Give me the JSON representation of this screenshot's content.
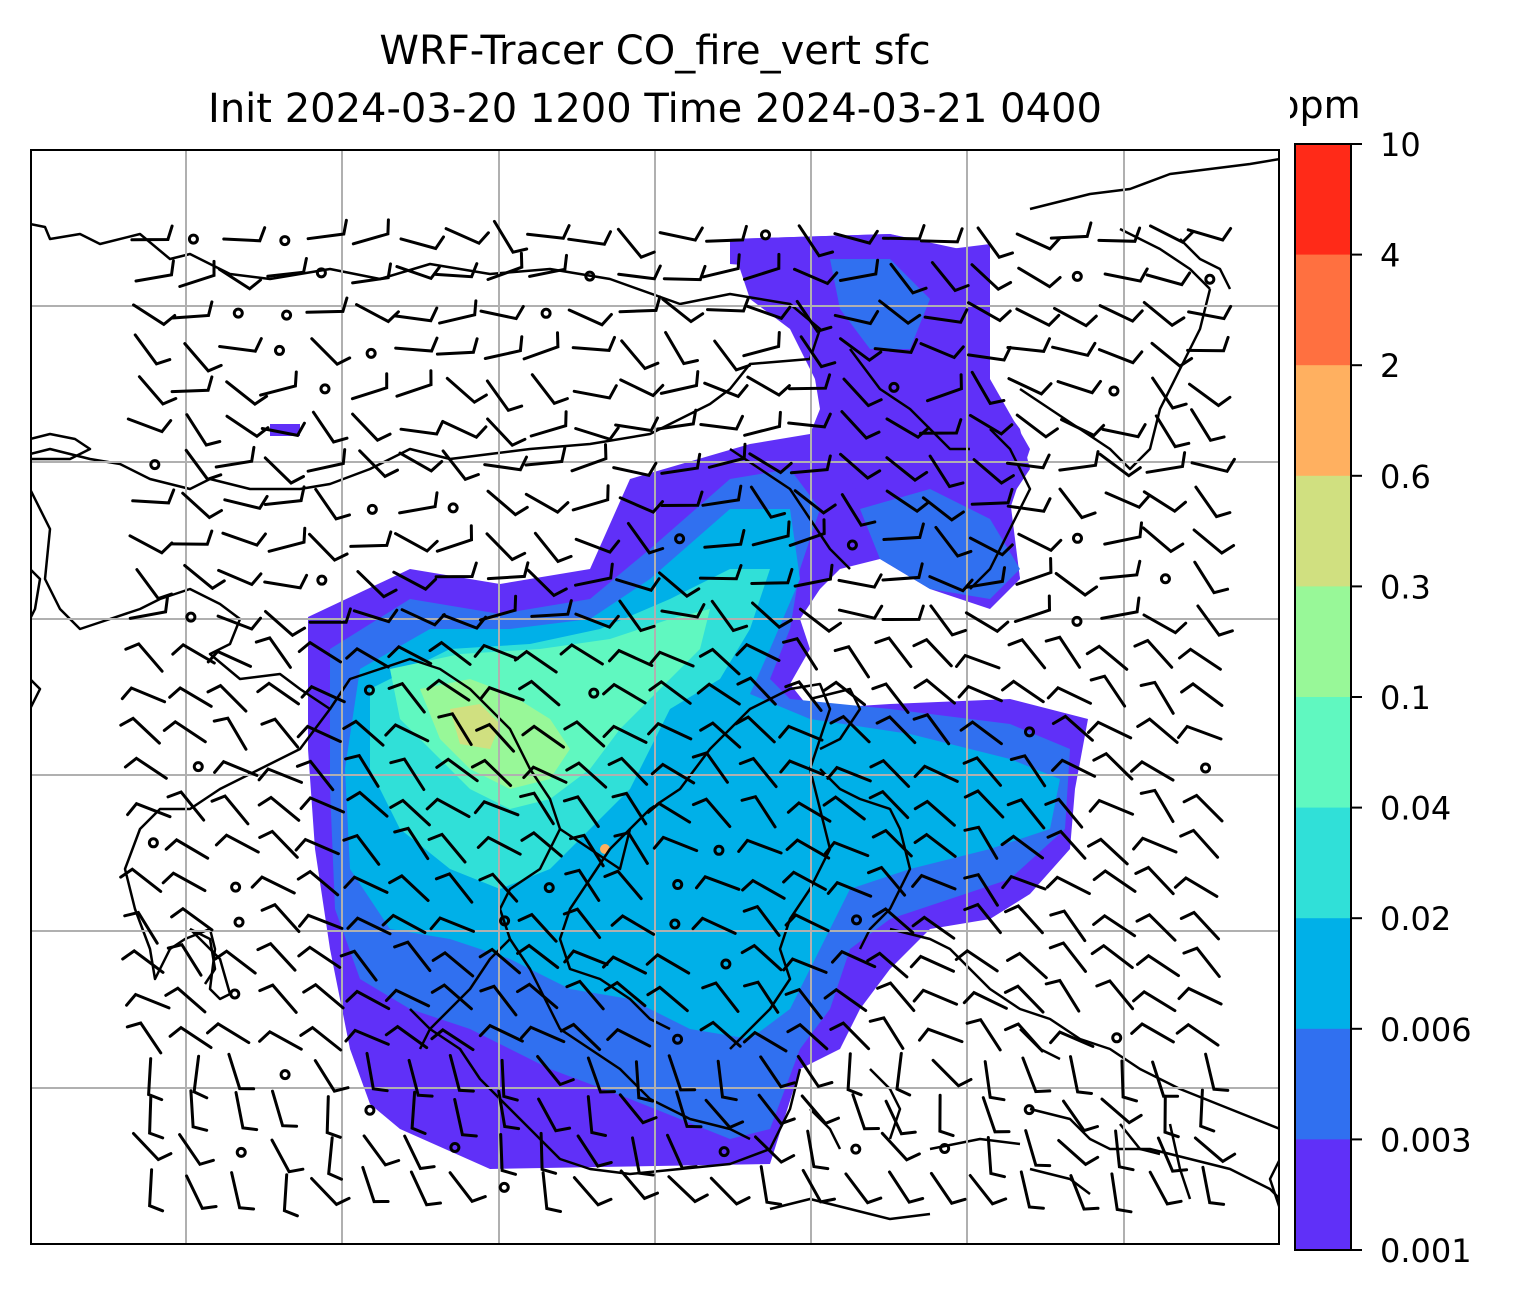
{
  "title": {
    "line1": "WRF-Tracer CO_fire_vert sfc",
    "line2": "Init 2024-03-20 1200 Time 2024-03-21 0400"
  },
  "colorbar": {
    "unit": "ppm",
    "ticks": [
      "10",
      "4",
      "2",
      "0.6",
      "0.3",
      "0.1",
      "0.04",
      "0.02",
      "0.006",
      "0.003",
      "0.001"
    ],
    "colors": [
      "#ff2a18",
      "#ff7040",
      "#ffb060",
      "#d0e080",
      "#98f898",
      "#60f8c0",
      "#30e0d8",
      "#00b0e8",
      "#3070f0",
      "#6030f8"
    ]
  },
  "map": {
    "gridlines": true,
    "wind_barbs": true,
    "tracer_field": "CO_fire_vert",
    "level": "sfc"
  }
}
